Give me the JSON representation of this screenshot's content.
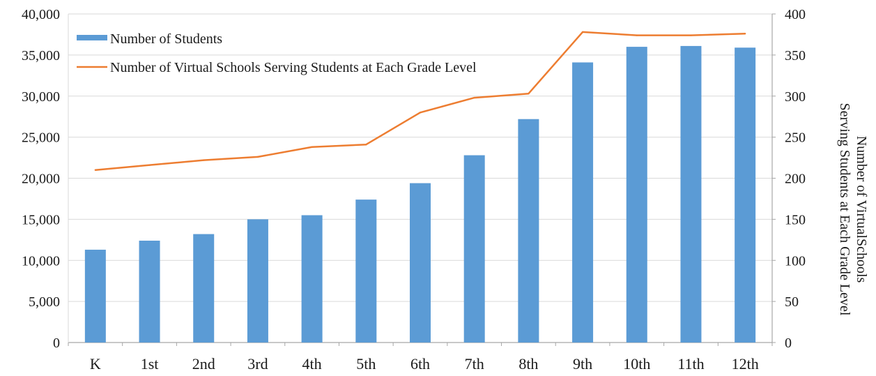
{
  "chart_data": {
    "type": "bar",
    "categories": [
      "K",
      "1st",
      "2nd",
      "3rd",
      "4th",
      "5th",
      "6th",
      "7th",
      "8th",
      "9th",
      "10th",
      "11th",
      "12th"
    ],
    "series": [
      {
        "name": "Number of Students",
        "type": "bar",
        "axis": "left",
        "color": "#5b9bd5",
        "values": [
          11300,
          12400,
          13200,
          15000,
          15500,
          17400,
          19400,
          22800,
          27200,
          34100,
          36000,
          36100,
          35900
        ]
      },
      {
        "name": "Number of Virtual Schools Serving Students at Each Grade Level",
        "type": "line",
        "axis": "right",
        "color": "#ed7d31",
        "values": [
          210,
          216,
          222,
          226,
          238,
          241,
          280,
          298,
          303,
          378,
          374,
          374,
          376
        ]
      }
    ],
    "y_left": {
      "min": 0,
      "max": 40000,
      "step": 5000,
      "ticks": [
        "0",
        "5,000",
        "10,000",
        "15,000",
        "20,000",
        "25,000",
        "30,000",
        "35,000",
        "40,000"
      ]
    },
    "y_right": {
      "min": 0,
      "max": 400,
      "step": 50,
      "ticks": [
        "0",
        "50",
        "100",
        "150",
        "200",
        "250",
        "300",
        "350",
        "400"
      ],
      "label_lines": [
        "Number of VirtualSchools",
        "Serving Students at Each Grade Level"
      ]
    },
    "grid": true,
    "legend_position": "top-left"
  }
}
